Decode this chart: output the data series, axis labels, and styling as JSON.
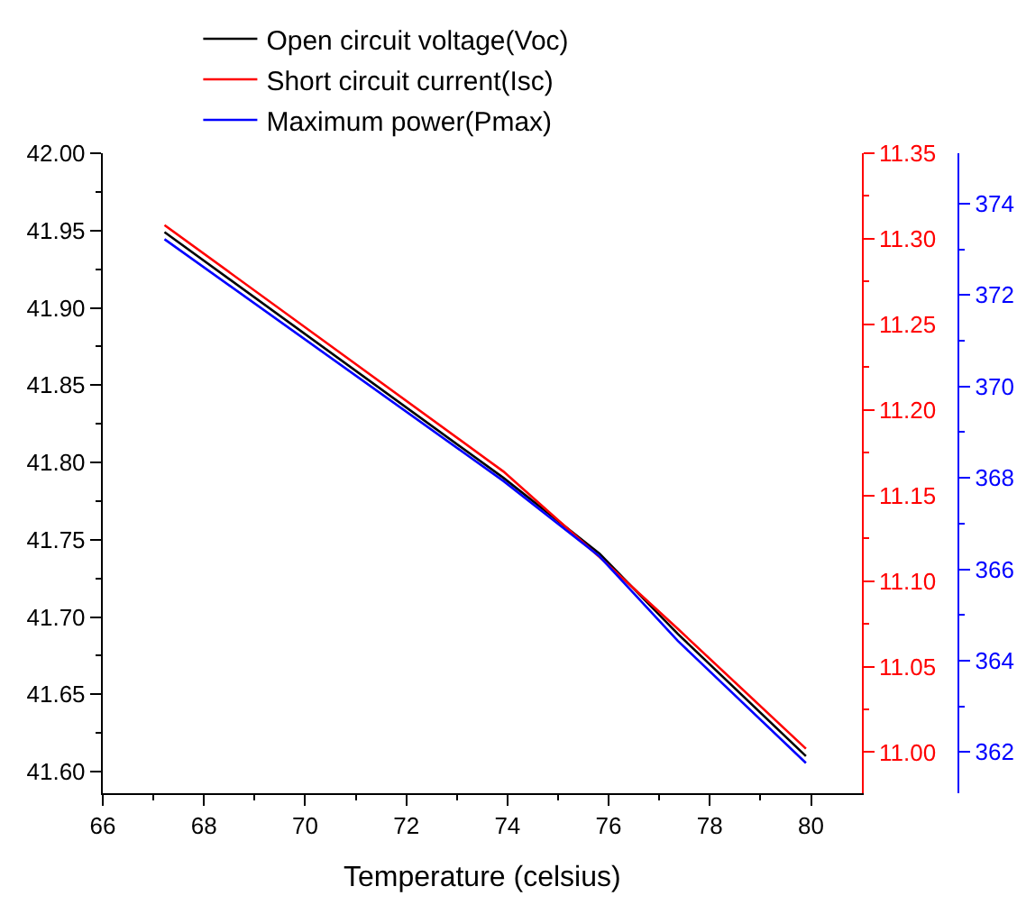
{
  "chart_data": {
    "type": "line",
    "xlabel": "Temperature (celsius)",
    "x": [
      67.22,
      73.92,
      75.82,
      77.37,
      79.9
    ],
    "xlim": [
      66,
      81
    ],
    "xticks": [
      66,
      68,
      70,
      72,
      74,
      76,
      78,
      80
    ],
    "ylim": [
      41.586,
      42.0
    ],
    "yticks": [
      {
        "value": 41.6,
        "label": "41.60"
      },
      {
        "value": 41.65,
        "label": "41.65"
      },
      {
        "value": 41.7,
        "label": "41.70"
      },
      {
        "value": 41.75,
        "label": "41.75"
      },
      {
        "value": 41.8,
        "label": "41.80"
      },
      {
        "value": 41.85,
        "label": "41.85"
      },
      {
        "value": 41.9,
        "label": "41.90"
      },
      {
        "value": 41.95,
        "label": "41.95"
      },
      {
        "value": 42.0,
        "label": "42.00"
      }
    ],
    "y2lim": [
      10.976,
      11.35
    ],
    "y2ticks": [
      {
        "value": 11.0,
        "label": "11.00"
      },
      {
        "value": 11.05,
        "label": "11.05"
      },
      {
        "value": 11.1,
        "label": "11.10"
      },
      {
        "value": 11.15,
        "label": "11.15"
      },
      {
        "value": 11.2,
        "label": "11.20"
      },
      {
        "value": 11.25,
        "label": "11.25"
      },
      {
        "value": 11.3,
        "label": "11.30"
      },
      {
        "value": 11.35,
        "label": "11.35"
      }
    ],
    "y3lim": [
      361.1,
      375.1
    ],
    "y3ticks": [
      362,
      364,
      366,
      368,
      370,
      372,
      374
    ],
    "legend": "top left",
    "marker": "none",
    "line_style": "solid",
    "series": [
      {
        "name": "Open circuit voltage(Voc)",
        "color": "#000000",
        "values": [
          41.949,
          41.79,
          41.741,
          41.689,
          41.61
        ]
      },
      {
        "name": "Short circuit current(Isc)",
        "color": "#ff0000",
        "axis": "y2",
        "values": [
          11.308,
          11.164,
          11.114,
          11.072,
          11.002
        ]
      },
      {
        "name": "Maximum power(Pmax)",
        "color": "#0000ff",
        "axis": "y3",
        "values": [
          373.22,
          367.93,
          366.28,
          364.43,
          361.76
        ]
      }
    ]
  }
}
